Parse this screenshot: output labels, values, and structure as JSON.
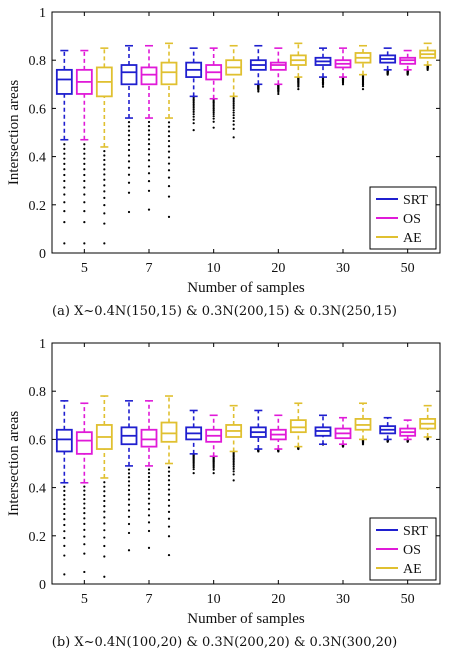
{
  "chart_data": [
    {
      "type": "box",
      "caption": "(a) X~0.4N(150,15) & 0.3N(200,15) & 0.3N(250,15)",
      "xlabel": "Number of samples",
      "ylabel": "Intersection areas",
      "ylim": [
        0,
        1
      ],
      "yticks": [
        "0",
        "0.2",
        "0.4",
        "0.6",
        "0.8",
        "1"
      ],
      "categories": [
        "5",
        "7",
        "10",
        "20",
        "30",
        "50"
      ],
      "legend_position": "bottom-right",
      "series": [
        {
          "name": "SRT",
          "color": "#1f1fcf",
          "boxes": [
            {
              "q1": 0.66,
              "median": 0.72,
              "q3": 0.76,
              "whisker_low": 0.47,
              "whisker_high": 0.84,
              "outlier_low": 0.04
            },
            {
              "q1": 0.7,
              "median": 0.75,
              "q3": 0.78,
              "whisker_low": 0.56,
              "whisker_high": 0.86,
              "outlier_low": 0.17
            },
            {
              "q1": 0.73,
              "median": 0.76,
              "q3": 0.79,
              "whisker_low": 0.65,
              "whisker_high": 0.85,
              "outlier_low": 0.51
            },
            {
              "q1": 0.76,
              "median": 0.78,
              "q3": 0.8,
              "whisker_low": 0.7,
              "whisker_high": 0.86,
              "outlier_low": 0.67
            },
            {
              "q1": 0.78,
              "median": 0.795,
              "q3": 0.81,
              "whisker_low": 0.73,
              "whisker_high": 0.85,
              "outlier_low": 0.69
            },
            {
              "q1": 0.79,
              "median": 0.805,
              "q3": 0.82,
              "whisker_low": 0.76,
              "whisker_high": 0.85,
              "outlier_low": 0.74
            }
          ]
        },
        {
          "name": "OS",
          "color": "#e01ad8",
          "boxes": [
            {
              "q1": 0.66,
              "median": 0.71,
              "q3": 0.76,
              "whisker_low": 0.47,
              "whisker_high": 0.84,
              "outlier_low": 0.04
            },
            {
              "q1": 0.7,
              "median": 0.74,
              "q3": 0.77,
              "whisker_low": 0.56,
              "whisker_high": 0.86,
              "outlier_low": 0.18
            },
            {
              "q1": 0.72,
              "median": 0.75,
              "q3": 0.78,
              "whisker_low": 0.64,
              "whisker_high": 0.85,
              "outlier_low": 0.52
            },
            {
              "q1": 0.76,
              "median": 0.78,
              "q3": 0.79,
              "whisker_low": 0.7,
              "whisker_high": 0.85,
              "outlier_low": 0.66
            },
            {
              "q1": 0.77,
              "median": 0.785,
              "q3": 0.8,
              "whisker_low": 0.73,
              "whisker_high": 0.85,
              "outlier_low": 0.7
            },
            {
              "q1": 0.785,
              "median": 0.8,
              "q3": 0.81,
              "whisker_low": 0.76,
              "whisker_high": 0.84,
              "outlier_low": 0.74
            }
          ]
        },
        {
          "name": "AE",
          "color": "#e0c030",
          "boxes": [
            {
              "q1": 0.65,
              "median": 0.71,
              "q3": 0.77,
              "whisker_low": 0.44,
              "whisker_high": 0.85,
              "outlier_low": 0.04
            },
            {
              "q1": 0.7,
              "median": 0.75,
              "q3": 0.79,
              "whisker_low": 0.56,
              "whisker_high": 0.87,
              "outlier_low": 0.15
            },
            {
              "q1": 0.74,
              "median": 0.77,
              "q3": 0.8,
              "whisker_low": 0.65,
              "whisker_high": 0.86,
              "outlier_low": 0.48
            },
            {
              "q1": 0.78,
              "median": 0.8,
              "q3": 0.82,
              "whisker_low": 0.73,
              "whisker_high": 0.87,
              "outlier_low": 0.68
            },
            {
              "q1": 0.79,
              "median": 0.81,
              "q3": 0.83,
              "whisker_low": 0.74,
              "whisker_high": 0.86,
              "outlier_low": 0.68
            },
            {
              "q1": 0.81,
              "median": 0.825,
              "q3": 0.84,
              "whisker_low": 0.78,
              "whisker_high": 0.87,
              "outlier_low": 0.76
            }
          ]
        }
      ]
    },
    {
      "type": "box",
      "caption": "(b) X~0.4N(100,20) & 0.3N(200,20) & 0.3N(300,20)",
      "xlabel": "Number of samples",
      "ylabel": "Intersection areas",
      "ylim": [
        0,
        1
      ],
      "yticks": [
        "0",
        "0.2",
        "0.4",
        "0.6",
        "0.8",
        "1"
      ],
      "categories": [
        "5",
        "7",
        "10",
        "20",
        "30",
        "50"
      ],
      "legend_position": "bottom-right",
      "series": [
        {
          "name": "SRT",
          "color": "#1f1fcf",
          "boxes": [
            {
              "q1": 0.55,
              "median": 0.6,
              "q3": 0.64,
              "whisker_low": 0.42,
              "whisker_high": 0.76,
              "outlier_low": 0.04
            },
            {
              "q1": 0.58,
              "median": 0.615,
              "q3": 0.65,
              "whisker_low": 0.49,
              "whisker_high": 0.76,
              "outlier_low": 0.14
            },
            {
              "q1": 0.6,
              "median": 0.625,
              "q3": 0.65,
              "whisker_low": 0.54,
              "whisker_high": 0.72,
              "outlier_low": 0.46
            },
            {
              "q1": 0.61,
              "median": 0.63,
              "q3": 0.65,
              "whisker_low": 0.56,
              "whisker_high": 0.72,
              "outlier_low": 0.55
            },
            {
              "q1": 0.615,
              "median": 0.635,
              "q3": 0.65,
              "whisker_low": 0.58,
              "whisker_high": 0.7,
              "outlier_low": 0.58
            },
            {
              "q1": 0.625,
              "median": 0.64,
              "q3": 0.655,
              "whisker_low": 0.6,
              "whisker_high": 0.69,
              "outlier_low": 0.59
            }
          ]
        },
        {
          "name": "OS",
          "color": "#e01ad8",
          "boxes": [
            {
              "q1": 0.54,
              "median": 0.595,
              "q3": 0.63,
              "whisker_low": 0.42,
              "whisker_high": 0.75,
              "outlier_low": 0.05
            },
            {
              "q1": 0.57,
              "median": 0.6,
              "q3": 0.64,
              "whisker_low": 0.49,
              "whisker_high": 0.76,
              "outlier_low": 0.15
            },
            {
              "q1": 0.59,
              "median": 0.615,
              "q3": 0.64,
              "whisker_low": 0.53,
              "whisker_high": 0.7,
              "outlier_low": 0.46
            },
            {
              "q1": 0.6,
              "median": 0.62,
              "q3": 0.64,
              "whisker_low": 0.56,
              "whisker_high": 0.7,
              "outlier_low": 0.55
            },
            {
              "q1": 0.605,
              "median": 0.625,
              "q3": 0.645,
              "whisker_low": 0.58,
              "whisker_high": 0.69,
              "outlier_low": 0.57
            },
            {
              "q1": 0.615,
              "median": 0.63,
              "q3": 0.645,
              "whisker_low": 0.6,
              "whisker_high": 0.68,
              "outlier_low": 0.59
            }
          ]
        },
        {
          "name": "AE",
          "color": "#e0c030",
          "boxes": [
            {
              "q1": 0.56,
              "median": 0.61,
              "q3": 0.66,
              "whisker_low": 0.44,
              "whisker_high": 0.78,
              "outlier_low": 0.03
            },
            {
              "q1": 0.59,
              "median": 0.625,
              "q3": 0.67,
              "whisker_low": 0.5,
              "whisker_high": 0.78,
              "outlier_low": 0.12
            },
            {
              "q1": 0.61,
              "median": 0.635,
              "q3": 0.66,
              "whisker_low": 0.55,
              "whisker_high": 0.74,
              "outlier_low": 0.43
            },
            {
              "q1": 0.63,
              "median": 0.65,
              "q3": 0.68,
              "whisker_low": 0.57,
              "whisker_high": 0.75,
              "outlier_low": 0.56
            },
            {
              "q1": 0.64,
              "median": 0.66,
              "q3": 0.685,
              "whisker_low": 0.6,
              "whisker_high": 0.75,
              "outlier_low": 0.58
            },
            {
              "q1": 0.645,
              "median": 0.665,
              "q3": 0.685,
              "whisker_low": 0.61,
              "whisker_high": 0.74,
              "outlier_low": 0.6
            }
          ]
        }
      ]
    }
  ]
}
